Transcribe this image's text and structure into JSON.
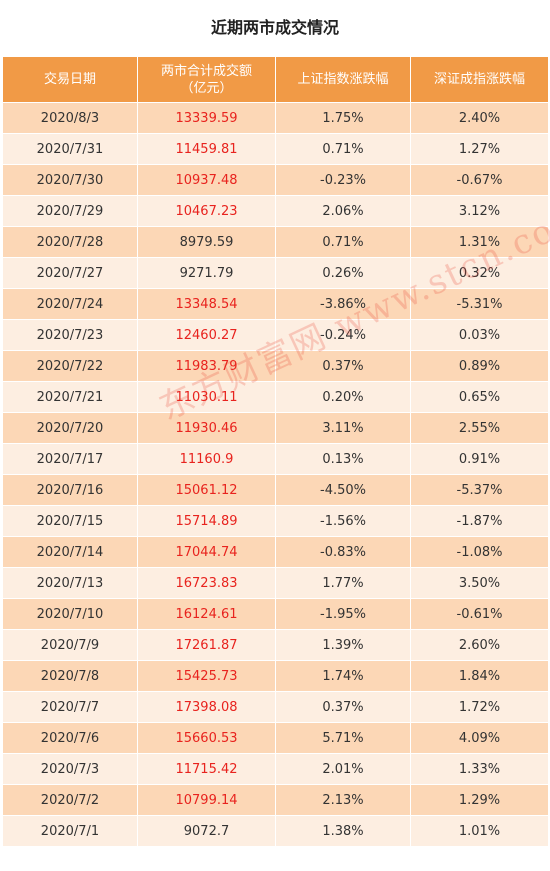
{
  "title": "近期两市成交情况",
  "headers": [
    "交易日期",
    "两市合计成交额\n（亿元）",
    "上证指数涨跌幅",
    "深证成指涨跌幅"
  ],
  "watermark": "东方财富网 www.stcn.com",
  "colors": {
    "header_bg": "#f19a46",
    "row_odd": "#fcd7b6",
    "row_even": "#fdeee1",
    "red_text": "#e8231e"
  },
  "rows": [
    {
      "date": "2020/8/3",
      "amount": "13339.59",
      "sh": "1.75%",
      "sz": "2.40%",
      "red": true
    },
    {
      "date": "2020/7/31",
      "amount": "11459.81",
      "sh": "0.71%",
      "sz": "1.27%",
      "red": true
    },
    {
      "date": "2020/7/30",
      "amount": "10937.48",
      "sh": "-0.23%",
      "sz": "-0.67%",
      "red": true
    },
    {
      "date": "2020/7/29",
      "amount": "10467.23",
      "sh": "2.06%",
      "sz": "3.12%",
      "red": true
    },
    {
      "date": "2020/7/28",
      "amount": "8979.59",
      "sh": "0.71%",
      "sz": "1.31%",
      "red": false
    },
    {
      "date": "2020/7/27",
      "amount": "9271.79",
      "sh": "0.26%",
      "sz": "0.32%",
      "red": false
    },
    {
      "date": "2020/7/24",
      "amount": "13348.54",
      "sh": "-3.86%",
      "sz": "-5.31%",
      "red": true
    },
    {
      "date": "2020/7/23",
      "amount": "12460.27",
      "sh": "-0.24%",
      "sz": "0.03%",
      "red": true
    },
    {
      "date": "2020/7/22",
      "amount": "11983.79",
      "sh": "0.37%",
      "sz": "0.89%",
      "red": true
    },
    {
      "date": "2020/7/21",
      "amount": "11030.11",
      "sh": "0.20%",
      "sz": "0.65%",
      "red": true
    },
    {
      "date": "2020/7/20",
      "amount": "11930.46",
      "sh": "3.11%",
      "sz": "2.55%",
      "red": true
    },
    {
      "date": "2020/7/17",
      "amount": "11160.9",
      "sh": "0.13%",
      "sz": "0.91%",
      "red": true
    },
    {
      "date": "2020/7/16",
      "amount": "15061.12",
      "sh": "-4.50%",
      "sz": "-5.37%",
      "red": true
    },
    {
      "date": "2020/7/15",
      "amount": "15714.89",
      "sh": "-1.56%",
      "sz": "-1.87%",
      "red": true
    },
    {
      "date": "2020/7/14",
      "amount": "17044.74",
      "sh": "-0.83%",
      "sz": "-1.08%",
      "red": true
    },
    {
      "date": "2020/7/13",
      "amount": "16723.83",
      "sh": "1.77%",
      "sz": "3.50%",
      "red": true
    },
    {
      "date": "2020/7/10",
      "amount": "16124.61",
      "sh": "-1.95%",
      "sz": "-0.61%",
      "red": true
    },
    {
      "date": "2020/7/9",
      "amount": "17261.87",
      "sh": "1.39%",
      "sz": "2.60%",
      "red": true
    },
    {
      "date": "2020/7/8",
      "amount": "15425.73",
      "sh": "1.74%",
      "sz": "1.84%",
      "red": true
    },
    {
      "date": "2020/7/7",
      "amount": "17398.08",
      "sh": "0.37%",
      "sz": "1.72%",
      "red": true
    },
    {
      "date": "2020/7/6",
      "amount": "15660.53",
      "sh": "5.71%",
      "sz": "4.09%",
      "red": true
    },
    {
      "date": "2020/7/3",
      "amount": "11715.42",
      "sh": "2.01%",
      "sz": "1.33%",
      "red": true
    },
    {
      "date": "2020/7/2",
      "amount": "10799.14",
      "sh": "2.13%",
      "sz": "1.29%",
      "red": true
    },
    {
      "date": "2020/7/1",
      "amount": "9072.7",
      "sh": "1.38%",
      "sz": "1.01%",
      "red": false
    }
  ]
}
